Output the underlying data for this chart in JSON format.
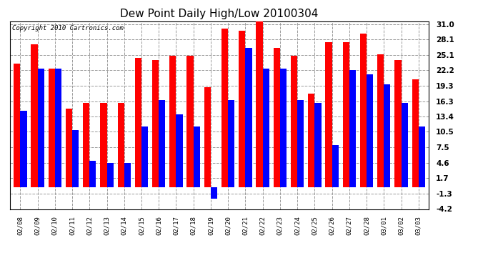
{
  "title": "Dew Point Daily High/Low 20100304",
  "copyright": "Copyright 2010 Cartronics.com",
  "dates": [
    "02/08",
    "02/09",
    "02/10",
    "02/11",
    "02/12",
    "02/13",
    "02/14",
    "02/15",
    "02/16",
    "02/17",
    "02/18",
    "02/19",
    "02/20",
    "02/21",
    "02/22",
    "02/23",
    "02/24",
    "02/25",
    "02/26",
    "02/27",
    "02/28",
    "03/01",
    "03/02",
    "03/03"
  ],
  "highs": [
    23.5,
    27.2,
    22.5,
    14.9,
    16.0,
    16.0,
    16.0,
    24.5,
    24.2,
    25.0,
    25.0,
    19.0,
    30.2,
    29.8,
    32.0,
    26.5,
    25.0,
    17.8,
    27.5,
    27.5,
    29.2,
    25.2,
    24.2,
    20.5
  ],
  "lows": [
    14.5,
    22.5,
    22.5,
    10.8,
    5.0,
    4.6,
    4.6,
    11.5,
    16.5,
    13.8,
    11.5,
    -2.2,
    16.5,
    26.5,
    22.5,
    22.5,
    16.5,
    16.0,
    8.0,
    22.2,
    21.5,
    19.5,
    16.0,
    11.5
  ],
  "high_color": "#ff0000",
  "low_color": "#0000ff",
  "bg_color": "#ffffff",
  "grid_color": "#999999",
  "yticks": [
    -4.2,
    -1.3,
    1.7,
    4.6,
    7.5,
    10.5,
    13.4,
    16.3,
    19.3,
    22.2,
    25.1,
    28.1,
    31.0
  ],
  "ymin": -4.2,
  "ymax": 31.0,
  "bar_width": 0.38
}
